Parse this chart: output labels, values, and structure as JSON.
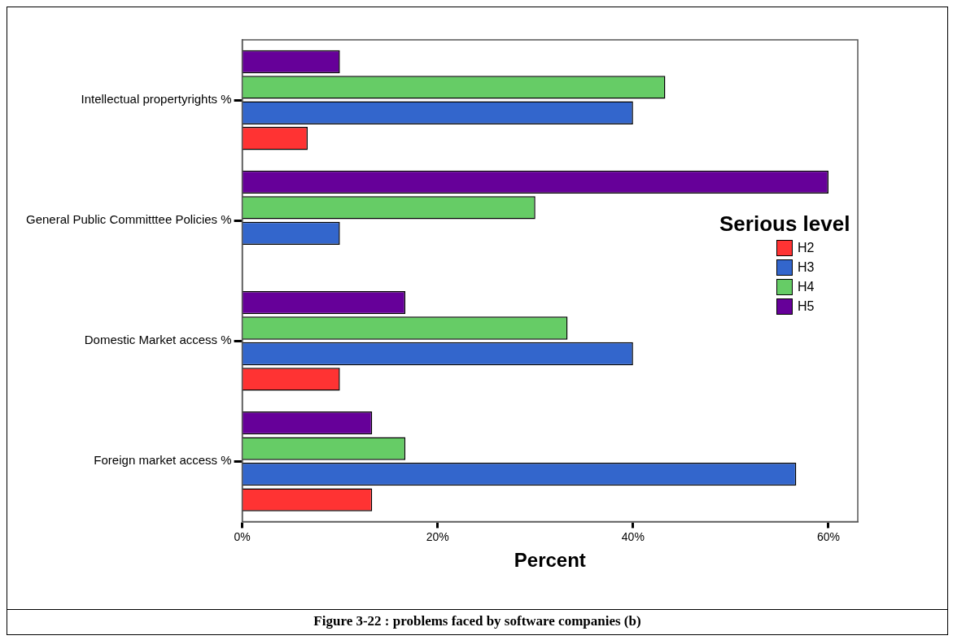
{
  "chart_data": {
    "type": "bar",
    "orientation": "horizontal",
    "xlabel": "Percent",
    "legend_title": "Serious level",
    "legend": "right",
    "categories": [
      "Intellectual propertyrights %",
      "General Public Committtee Policies %",
      "Domestic Market access %",
      "Foreign market access %"
    ],
    "series": [
      {
        "name": "H2",
        "color": "#ff3333",
        "values": [
          6.7,
          null,
          10,
          13.3
        ]
      },
      {
        "name": "H3",
        "color": "#3366cc",
        "values": [
          40,
          10,
          40,
          56.7
        ]
      },
      {
        "name": "H4",
        "color": "#66cc66",
        "values": [
          43.3,
          30,
          33.3,
          16.7
        ]
      },
      {
        "name": "H5",
        "color": "#660099",
        "values": [
          10,
          60,
          16.7,
          13.3
        ]
      }
    ],
    "xlim": [
      0,
      63
    ],
    "xticks": [
      {
        "value": 0,
        "label": "0%"
      },
      {
        "value": 20,
        "label": "20%"
      },
      {
        "value": 40,
        "label": "40%"
      },
      {
        "value": 60,
        "label": "60%"
      }
    ],
    "grid": false,
    "annotations": [
      "Figure 3-22 : problems faced by software companies (b)"
    ]
  }
}
